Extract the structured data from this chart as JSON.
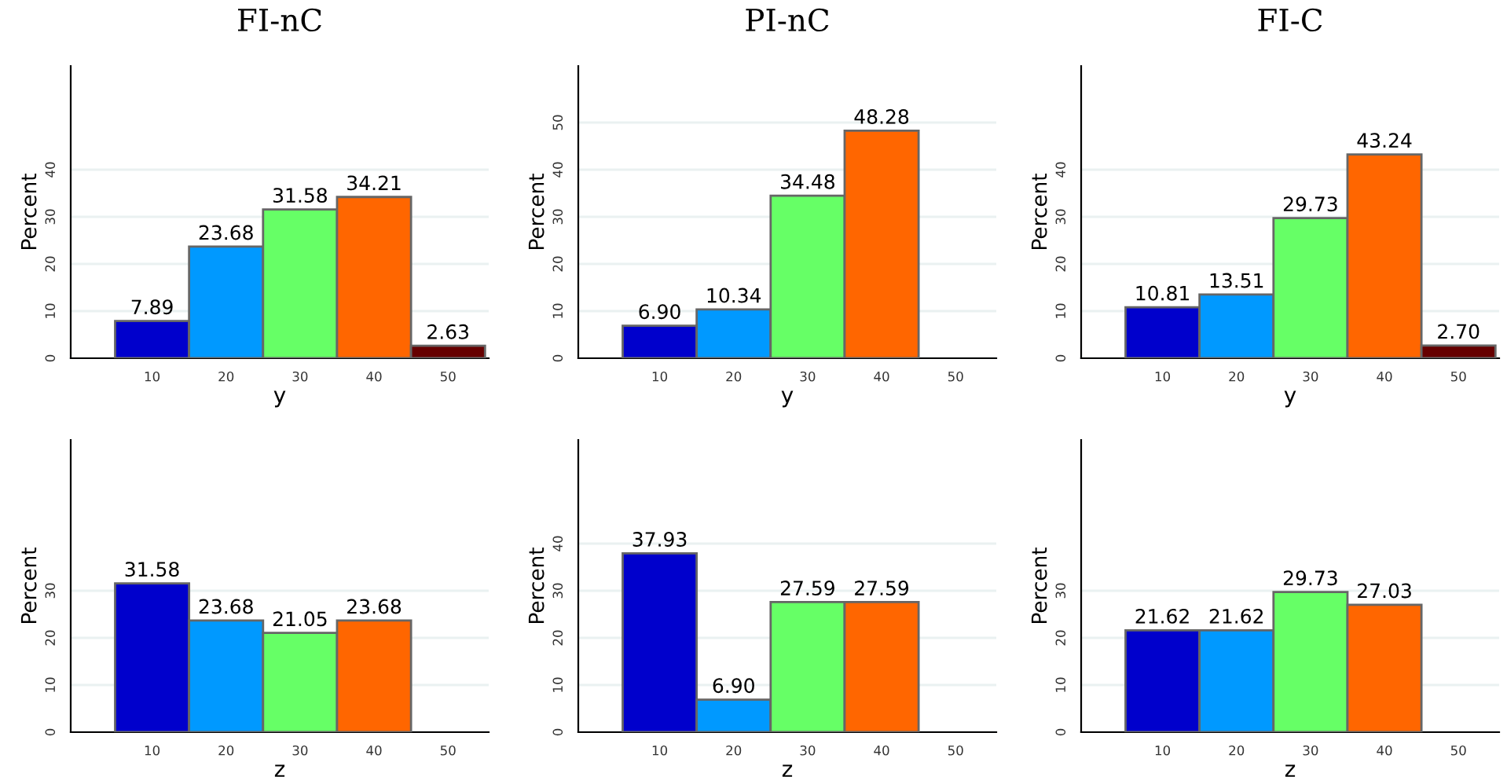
{
  "chart_data": [
    {
      "type": "histogram",
      "title": "FI-nC",
      "xlabel": "y",
      "ylabel": "Percent",
      "bins": [
        5,
        15,
        25,
        35,
        45,
        55
      ],
      "values": [
        7.89,
        23.68,
        31.58,
        34.21,
        2.63
      ],
      "value_labels": [
        "7.89",
        "23.68",
        "31.58",
        "34.21",
        "2.63"
      ],
      "colors": [
        "#0000cc",
        "#0099ff",
        "#66ff66",
        "#ff6600",
        "#660000"
      ],
      "xlim": [
        -1,
        55.5
      ],
      "xticks": [
        10,
        20,
        30,
        40,
        50
      ],
      "ylim": [
        0,
        62
      ],
      "yticks": [
        0,
        10,
        20,
        30,
        40
      ],
      "grid": "y"
    },
    {
      "type": "histogram",
      "title": "PI-nC",
      "xlabel": "y",
      "ylabel": "Percent",
      "bins": [
        5,
        15,
        25,
        35,
        45,
        55
      ],
      "values": [
        6.9,
        10.34,
        34.48,
        48.28,
        null
      ],
      "value_labels": [
        "6.90",
        "10.34",
        "34.48",
        "48.28",
        null
      ],
      "colors": [
        "#0000cc",
        "#0099ff",
        "#66ff66",
        "#ff6600",
        "#660000"
      ],
      "xlim": [
        -1,
        55.5
      ],
      "xticks": [
        10,
        20,
        30,
        40,
        50
      ],
      "ylim": [
        0,
        62
      ],
      "yticks": [
        0,
        10,
        20,
        30,
        40,
        50
      ],
      "grid": "y"
    },
    {
      "type": "histogram",
      "title": "FI-C",
      "xlabel": "y",
      "ylabel": "Percent",
      "bins": [
        5,
        15,
        25,
        35,
        45,
        55
      ],
      "values": [
        10.81,
        13.51,
        29.73,
        43.24,
        2.7
      ],
      "value_labels": [
        "10.81",
        "13.51",
        "29.73",
        "43.24",
        "2.70"
      ],
      "colors": [
        "#0000cc",
        "#0099ff",
        "#66ff66",
        "#ff6600",
        "#660000"
      ],
      "xlim": [
        -1,
        55.5
      ],
      "xticks": [
        10,
        20,
        30,
        40,
        50
      ],
      "ylim": [
        0,
        62
      ],
      "yticks": [
        0,
        10,
        20,
        30,
        40
      ],
      "grid": "y"
    },
    {
      "type": "histogram",
      "xlabel": "z",
      "ylabel": "Percent",
      "bins": [
        5,
        15,
        25,
        35,
        45,
        55
      ],
      "values": [
        31.58,
        23.68,
        21.05,
        23.68,
        null
      ],
      "value_labels": [
        "31.58",
        "23.68",
        "21.05",
        "23.68",
        null
      ],
      "colors": [
        "#0000cc",
        "#0099ff",
        "#66ff66",
        "#ff6600",
        "#660000"
      ],
      "xlim": [
        -1,
        55.5
      ],
      "xticks": [
        10,
        20,
        30,
        40,
        50
      ],
      "ylim": [
        0,
        62
      ],
      "yticks": [
        0,
        10,
        20,
        30
      ],
      "grid": "y"
    },
    {
      "type": "histogram",
      "xlabel": "z",
      "ylabel": "Percent",
      "bins": [
        5,
        15,
        25,
        35,
        45,
        55
      ],
      "values": [
        37.93,
        6.9,
        27.59,
        27.59,
        null
      ],
      "value_labels": [
        "37.93",
        "6.90",
        "27.59",
        "27.59",
        null
      ],
      "colors": [
        "#0000cc",
        "#0099ff",
        "#66ff66",
        "#ff6600",
        "#660000"
      ],
      "xlim": [
        -1,
        55.5
      ],
      "xticks": [
        10,
        20,
        30,
        40,
        50
      ],
      "ylim": [
        0,
        62
      ],
      "yticks": [
        0,
        10,
        20,
        30,
        40
      ],
      "grid": "y"
    },
    {
      "type": "histogram",
      "xlabel": "z",
      "ylabel": "Percent",
      "bins": [
        5,
        15,
        25,
        35,
        45,
        55
      ],
      "values": [
        21.62,
        21.62,
        29.73,
        27.03,
        null
      ],
      "value_labels": [
        "21.62",
        "21.62",
        "29.73",
        "27.03",
        null
      ],
      "colors": [
        "#0000cc",
        "#0099ff",
        "#66ff66",
        "#ff6600",
        "#660000"
      ],
      "xlim": [
        -1,
        55.5
      ],
      "xticks": [
        10,
        20,
        30,
        40,
        50
      ],
      "ylim": [
        0,
        62
      ],
      "yticks": [
        0,
        10,
        20,
        30
      ],
      "grid": "y"
    }
  ]
}
